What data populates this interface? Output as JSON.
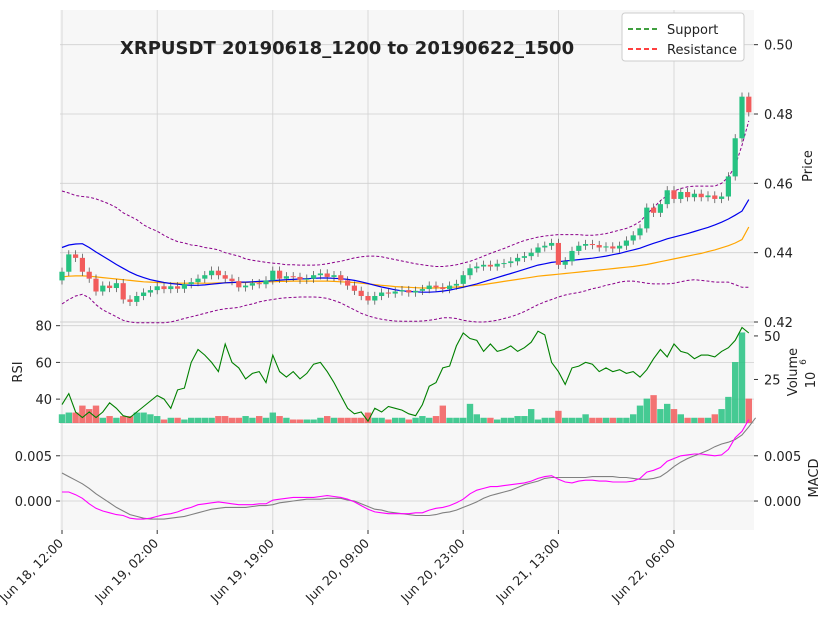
{
  "title": "XRPUSDT 20190618_1200 to 20190622_1500",
  "legend": {
    "position": "top-right",
    "entries": [
      {
        "label": "Support",
        "color": "#008000",
        "style": "dashed"
      },
      {
        "label": "Resistance",
        "color": "#ff0000",
        "style": "dashed"
      }
    ]
  },
  "colors": {
    "up": "#26c281",
    "down": "#f25c5c",
    "ma_fast": "#0000ee",
    "ma_slow": "#ffa500",
    "band": "#8b008b",
    "rsi": "#008000",
    "macd": "#ff00ff",
    "signal": "#808080",
    "panel_bg": "#f7f7f7",
    "grid": "#d0d0d0"
  },
  "chart_data": {
    "type": "candlestick",
    "title": "XRPUSDT 20190618_1200 to 20190622_1500",
    "x_tick_labels": [
      "Jun 18, 12:00",
      "Jun 19, 02:00",
      "Jun 19, 19:00",
      "Jun 20, 09:00",
      "Jun 20, 23:00",
      "Jun 21, 13:00",
      "Jun 22, 06:00"
    ],
    "x_tick_index": [
      0,
      14,
      31,
      45,
      59,
      73,
      90
    ],
    "price_panel": {
      "ylabel": "Price",
      "ylim": [
        0.42,
        0.51
      ],
      "yticks": [
        "0.42",
        "0.44",
        "0.46",
        "0.48",
        "0.50"
      ],
      "ytick_values": [
        0.42,
        0.44,
        0.46,
        0.48,
        0.5
      ]
    },
    "rsi_panel": {
      "ylabel": "RSI",
      "ylim": [
        27,
        82
      ],
      "yticks": [
        "40",
        "60",
        "80"
      ],
      "ytick_values": [
        40,
        60,
        80
      ]
    },
    "volume_panel": {
      "ylabel": "Volume",
      "multiplier": "10",
      "multiplier_exp": "6",
      "ylim": [
        0,
        58
      ],
      "yticks": [
        "25",
        "50"
      ],
      "ytick_values": [
        25,
        50
      ]
    },
    "macd_panel": {
      "ylabel": "MACD",
      "ylim": [
        -0.0032,
        0.0084
      ],
      "yticks_left": [
        "0.000",
        "0.005"
      ],
      "yticks_right": [
        "0.000",
        "0.005"
      ],
      "ytick_values": [
        0.0,
        0.005
      ]
    },
    "close": [
      0.4345,
      0.4395,
      0.4385,
      0.4345,
      0.4325,
      0.4288,
      0.4305,
      0.4298,
      0.4312,
      0.4265,
      0.4258,
      0.4275,
      0.4285,
      0.4292,
      0.4303,
      0.4295,
      0.4303,
      0.4296,
      0.4309,
      0.4315,
      0.4325,
      0.4335,
      0.4348,
      0.4335,
      0.4325,
      0.4318,
      0.43,
      0.4305,
      0.4312,
      0.4309,
      0.432,
      0.4348,
      0.4325,
      0.4332,
      0.433,
      0.4322,
      0.4325,
      0.4335,
      0.434,
      0.433,
      0.4335,
      0.432,
      0.4305,
      0.429,
      0.4275,
      0.4262,
      0.4275,
      0.4285,
      0.4282,
      0.4288,
      0.4292,
      0.4285,
      0.429,
      0.4295,
      0.4305,
      0.43,
      0.4295,
      0.4305,
      0.431,
      0.4335,
      0.4355,
      0.436,
      0.4365,
      0.436,
      0.4368,
      0.437,
      0.4375,
      0.4385,
      0.439,
      0.44,
      0.4415,
      0.442,
      0.4428,
      0.4365,
      0.4375,
      0.4405,
      0.442,
      0.4425,
      0.4422,
      0.4415,
      0.4418,
      0.4412,
      0.442,
      0.4435,
      0.445,
      0.447,
      0.453,
      0.4515,
      0.454,
      0.458,
      0.4555,
      0.4575,
      0.456,
      0.457,
      0.456,
      0.4565,
      0.4555,
      0.4562,
      0.462,
      0.473,
      0.485,
      0.4805
    ],
    "open": [
      0.432,
      0.4345,
      0.4395,
      0.4385,
      0.4345,
      0.4325,
      0.4288,
      0.4305,
      0.4298,
      0.4312,
      0.4265,
      0.4258,
      0.4275,
      0.4285,
      0.4292,
      0.4303,
      0.4295,
      0.4303,
      0.4296,
      0.4309,
      0.4315,
      0.4325,
      0.4335,
      0.4348,
      0.4335,
      0.4325,
      0.4318,
      0.43,
      0.4305,
      0.4312,
      0.4309,
      0.432,
      0.4348,
      0.4325,
      0.4332,
      0.433,
      0.4322,
      0.4325,
      0.4335,
      0.434,
      0.433,
      0.4335,
      0.432,
      0.4305,
      0.429,
      0.4275,
      0.4262,
      0.4275,
      0.4285,
      0.4282,
      0.4288,
      0.4292,
      0.4285,
      0.429,
      0.4295,
      0.4305,
      0.43,
      0.4295,
      0.4305,
      0.431,
      0.4335,
      0.4355,
      0.436,
      0.4365,
      0.436,
      0.4368,
      0.437,
      0.4375,
      0.4385,
      0.439,
      0.44,
      0.4415,
      0.442,
      0.4428,
      0.4365,
      0.4375,
      0.4405,
      0.442,
      0.4425,
      0.4422,
      0.4415,
      0.4418,
      0.4412,
      0.442,
      0.4435,
      0.445,
      0.447,
      0.453,
      0.4515,
      0.454,
      0.458,
      0.4555,
      0.4575,
      0.456,
      0.457,
      0.456,
      0.4565,
      0.4555,
      0.4562,
      0.462,
      0.473,
      0.485
    ],
    "ma_fast": [
      0.4415,
      0.4422,
      0.4425,
      0.4426,
      0.4415,
      0.4402,
      0.439,
      0.4378,
      0.4366,
      0.4355,
      0.4344,
      0.4335,
      0.4328,
      0.4322,
      0.4318,
      0.4314,
      0.4311,
      0.4309,
      0.4307,
      0.4306,
      0.4306,
      0.4307,
      0.4309,
      0.4311,
      0.4313,
      0.4314,
      0.4315,
      0.4315,
      0.4316,
      0.4317,
      0.4318,
      0.4319,
      0.4321,
      0.4322,
      0.4323,
      0.4324,
      0.4325,
      0.4326,
      0.4327,
      0.4327,
      0.4326,
      0.4325,
      0.4323,
      0.432,
      0.4316,
      0.4311,
      0.4306,
      0.4301,
      0.4297,
      0.4293,
      0.429,
      0.4288,
      0.4287,
      0.4286,
      0.4286,
      0.4287,
      0.4289,
      0.4292,
      0.4296,
      0.43,
      0.4305,
      0.431,
      0.4316,
      0.4322,
      0.4328,
      0.4334,
      0.434,
      0.4346,
      0.4352,
      0.4358,
      0.4364,
      0.4368,
      0.4372,
      0.4374,
      0.4376,
      0.4378,
      0.438,
      0.4382,
      0.4384,
      0.4387,
      0.439,
      0.4394,
      0.4398,
      0.4403,
      0.4408,
      0.4413,
      0.442,
      0.4427,
      0.4433,
      0.444,
      0.4445,
      0.445,
      0.4455,
      0.4461,
      0.4467,
      0.4473,
      0.448,
      0.4488,
      0.4497,
      0.4508,
      0.452,
      0.4553
    ],
    "ma_slow": [
      0.433,
      0.4332,
      0.4333,
      0.4333,
      0.4332,
      0.433,
      0.4328,
      0.4326,
      0.4324,
      0.4322,
      0.432,
      0.4318,
      0.4316,
      0.4315,
      0.4314,
      0.4313,
      0.4312,
      0.4312,
      0.4312,
      0.4312,
      0.4312,
      0.4312,
      0.4312,
      0.4313,
      0.4313,
      0.4314,
      0.4314,
      0.4314,
      0.4315,
      0.4315,
      0.4316,
      0.4316,
      0.4317,
      0.4317,
      0.4318,
      0.4318,
      0.4318,
      0.4318,
      0.4318,
      0.4318,
      0.4317,
      0.4316,
      0.4315,
      0.4314,
      0.4312,
      0.431,
      0.4308,
      0.4306,
      0.4304,
      0.4302,
      0.4301,
      0.43,
      0.4299,
      0.4298,
      0.4298,
      0.4298,
      0.4299,
      0.43,
      0.4301,
      0.4302,
      0.4304,
      0.4306,
      0.4308,
      0.4311,
      0.4314,
      0.4317,
      0.432,
      0.4323,
      0.4326,
      0.4329,
      0.4332,
      0.4334,
      0.4336,
      0.4338,
      0.434,
      0.4342,
      0.4344,
      0.4346,
      0.4348,
      0.435,
      0.4352,
      0.4354,
      0.4356,
      0.4358,
      0.436,
      0.4363,
      0.4366,
      0.437,
      0.4374,
      0.4378,
      0.4382,
      0.4386,
      0.439,
      0.4394,
      0.4398,
      0.4403,
      0.4408,
      0.4414,
      0.442,
      0.4428,
      0.4438,
      0.4474
    ],
    "band_upper": [
      0.4578,
      0.4572,
      0.4565,
      0.4562,
      0.456,
      0.4555,
      0.4548,
      0.454,
      0.453,
      0.4515,
      0.4505,
      0.4495,
      0.448,
      0.447,
      0.4462,
      0.445,
      0.444,
      0.4432,
      0.4428,
      0.4422,
      0.442,
      0.4415,
      0.4412,
      0.4408,
      0.44,
      0.4395,
      0.439,
      0.4382,
      0.4378,
      0.4375,
      0.4372,
      0.437,
      0.4368,
      0.4365,
      0.4365,
      0.4364,
      0.4364,
      0.4364,
      0.4365,
      0.4368,
      0.4372,
      0.4375,
      0.438,
      0.4385,
      0.4388,
      0.439,
      0.439,
      0.4388,
      0.4384,
      0.438,
      0.4376,
      0.4372,
      0.4368,
      0.4365,
      0.4362,
      0.436,
      0.436,
      0.4362,
      0.4365,
      0.437,
      0.4375,
      0.4382,
      0.439,
      0.4398,
      0.4405,
      0.4412,
      0.442,
      0.4428,
      0.4435,
      0.444,
      0.4445,
      0.4448,
      0.445,
      0.4452,
      0.4452,
      0.4452,
      0.4452,
      0.445,
      0.445,
      0.4452,
      0.4455,
      0.446,
      0.4465,
      0.447,
      0.4478,
      0.449,
      0.451,
      0.453,
      0.455,
      0.4565,
      0.4578,
      0.4585,
      0.459,
      0.4592,
      0.4592,
      0.4592,
      0.4592,
      0.46,
      0.4618,
      0.465,
      0.471,
      0.478
    ],
    "band_lower": [
      0.4252,
      0.4265,
      0.4275,
      0.428,
      0.427,
      0.425,
      0.4235,
      0.4225,
      0.4215,
      0.4205,
      0.42,
      0.4198,
      0.4198,
      0.4198,
      0.4198,
      0.4198,
      0.42,
      0.4205,
      0.421,
      0.4215,
      0.422,
      0.4225,
      0.423,
      0.4235,
      0.4238,
      0.424,
      0.4242,
      0.4248,
      0.4252,
      0.4258,
      0.4262,
      0.4265,
      0.4268,
      0.427,
      0.4271,
      0.4272,
      0.4272,
      0.4272,
      0.4271,
      0.4268,
      0.4262,
      0.4255,
      0.4245,
      0.4235,
      0.4225,
      0.4218,
      0.4212,
      0.4208,
      0.4205,
      0.4203,
      0.4202,
      0.4202,
      0.4202,
      0.4203,
      0.4205,
      0.4208,
      0.4212,
      0.4212,
      0.421,
      0.4205,
      0.4202,
      0.42,
      0.42,
      0.4202,
      0.4205,
      0.421,
      0.4215,
      0.4222,
      0.423,
      0.424,
      0.425,
      0.4258,
      0.4265,
      0.4272,
      0.4278,
      0.4282,
      0.4285,
      0.429,
      0.4296,
      0.43,
      0.4306,
      0.431,
      0.4315,
      0.4318,
      0.4318,
      0.4315,
      0.4312,
      0.431,
      0.431,
      0.431,
      0.4312,
      0.4316,
      0.432,
      0.4322,
      0.432,
      0.4318,
      0.4315,
      0.4315,
      0.4315,
      0.4308,
      0.43,
      0.43
    ],
    "rsi": [
      37,
      43,
      33,
      30,
      33,
      30,
      33,
      38,
      35,
      31,
      30,
      33,
      36,
      39,
      42,
      40,
      35,
      45,
      46,
      60,
      67,
      64,
      60,
      55,
      70,
      60,
      57,
      51,
      54,
      55,
      49,
      64,
      55,
      52,
      55,
      51,
      54,
      59,
      60,
      55,
      49,
      42,
      35,
      32,
      33,
      28,
      35,
      33,
      36,
      35,
      34,
      32,
      31,
      37,
      47,
      49,
      57,
      58,
      69,
      76,
      73,
      72,
      66,
      70,
      66,
      67,
      69,
      66,
      68,
      71,
      77,
      75,
      60,
      55,
      48,
      57,
      58,
      60,
      59,
      55,
      57,
      55,
      56,
      54,
      55,
      52,
      56,
      62,
      67,
      63,
      70,
      66,
      65,
      62,
      64,
      64,
      63,
      66,
      68,
      72,
      79,
      76
    ],
    "volume": [
      5,
      6,
      6,
      10,
      8,
      10,
      3,
      4,
      3,
      4,
      4,
      6,
      6,
      5,
      4,
      2,
      3,
      3,
      2,
      3,
      3,
      3,
      3,
      4,
      4,
      3,
      3,
      4,
      3,
      4,
      3,
      6,
      4,
      3,
      2,
      2,
      2,
      2,
      3,
      4,
      3,
      3,
      3,
      3,
      3,
      6,
      3,
      3,
      2,
      3,
      3,
      2,
      3,
      4,
      3,
      4,
      10,
      3,
      3,
      3,
      11,
      5,
      3,
      3,
      2,
      3,
      3,
      4,
      4,
      8,
      2,
      3,
      3,
      7,
      3,
      3,
      3,
      5,
      3,
      3,
      3,
      3,
      3,
      3,
      5,
      10,
      14,
      16,
      8,
      11,
      8,
      5,
      3,
      3,
      3,
      3,
      5,
      8,
      15,
      35,
      52,
      14
    ],
    "macd": [
      0.001,
      0.001,
      0.0007,
      0.0003,
      -0.0003,
      -0.0008,
      -0.0011,
      -0.0013,
      -0.0015,
      -0.0016,
      -0.0019,
      -0.002,
      -0.002,
      -0.0019,
      -0.0017,
      -0.0015,
      -0.0014,
      -0.0012,
      -0.0009,
      -0.0007,
      -0.0004,
      -0.0003,
      -0.0002,
      -0.0001,
      -0.0002,
      -0.0003,
      -0.0004,
      -0.0004,
      -0.0004,
      -0.0003,
      -0.0003,
      0.0001,
      0.0002,
      0.0003,
      0.0004,
      0.0004,
      0.0004,
      0.0004,
      0.0005,
      0.0006,
      0.0005,
      0.0004,
      0.0002,
      -0.0001,
      -0.0005,
      -0.0009,
      -0.0012,
      -0.0013,
      -0.0014,
      -0.0014,
      -0.0014,
      -0.0014,
      -0.0013,
      -0.0013,
      -0.001,
      -0.0008,
      -0.0007,
      -0.0005,
      -0.0002,
      0.0002,
      0.0008,
      0.0012,
      0.0014,
      0.0016,
      0.0016,
      0.0017,
      0.0018,
      0.0019,
      0.002,
      0.0022,
      0.0025,
      0.0027,
      0.0028,
      0.0024,
      0.0021,
      0.002,
      0.0022,
      0.0023,
      0.0023,
      0.0022,
      0.0022,
      0.0021,
      0.0021,
      0.0021,
      0.0022,
      0.0025,
      0.0032,
      0.0034,
      0.0037,
      0.0044,
      0.0047,
      0.005,
      0.0051,
      0.0052,
      0.0052,
      0.0051,
      0.005,
      0.0051,
      0.0057,
      0.007,
      0.0077,
      0.009
    ],
    "signal": [
      0.0031,
      0.0027,
      0.0023,
      0.0019,
      0.0014,
      0.0008,
      0.0003,
      -0.0002,
      -0.0007,
      -0.0011,
      -0.0015,
      -0.0017,
      -0.0019,
      -0.002,
      -0.002,
      -0.002,
      -0.0019,
      -0.0018,
      -0.0017,
      -0.0015,
      -0.0013,
      -0.0011,
      -0.0009,
      -0.0008,
      -0.0007,
      -0.0007,
      -0.0007,
      -0.0007,
      -0.0006,
      -0.0005,
      -0.0005,
      -0.0004,
      -0.0002,
      -0.0001,
      0.0,
      0.0001,
      0.0002,
      0.0002,
      0.0002,
      0.0003,
      0.0003,
      0.0003,
      0.0001,
      0.0,
      -0.0003,
      -0.0006,
      -0.0009,
      -0.001,
      -0.0012,
      -0.0013,
      -0.0014,
      -0.0015,
      -0.0016,
      -0.0016,
      -0.0016,
      -0.0015,
      -0.0013,
      -0.0012,
      -0.001,
      -0.0007,
      -0.0004,
      -0.0001,
      0.0003,
      0.0006,
      0.0008,
      0.001,
      0.0012,
      0.0015,
      0.0018,
      0.002,
      0.0022,
      0.0025,
      0.0026,
      0.0026,
      0.0026,
      0.0026,
      0.0026,
      0.0026,
      0.0027,
      0.0027,
      0.0027,
      0.0027,
      0.0026,
      0.0026,
      0.0025,
      0.0024,
      0.0024,
      0.0025,
      0.0027,
      0.0032,
      0.0038,
      0.0043,
      0.0047,
      0.005,
      0.0053,
      0.0056,
      0.006,
      0.0063,
      0.0065,
      0.0068,
      0.0073,
      0.0082,
      0.0092
    ]
  }
}
